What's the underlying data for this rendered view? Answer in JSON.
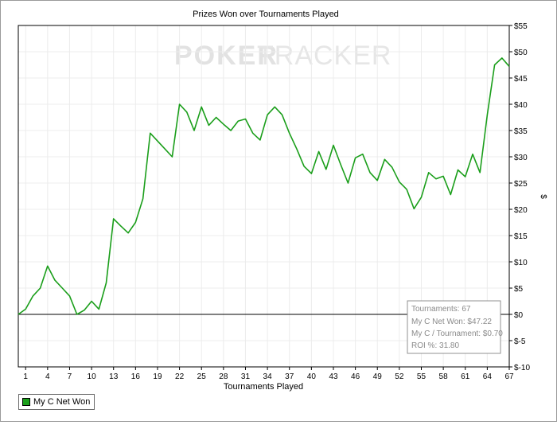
{
  "chart_data": {
    "type": "line",
    "title": "Prizes Won over Tournaments Played",
    "xlabel": "Tournaments Played",
    "ylabel": "$",
    "watermark": {
      "poker": "POKER",
      "tracker": "TRACKER"
    },
    "xlim": [
      0,
      67
    ],
    "ylim": [
      -10,
      55
    ],
    "x_ticks": [
      1,
      4,
      7,
      10,
      13,
      16,
      19,
      22,
      25,
      28,
      31,
      34,
      37,
      40,
      43,
      46,
      49,
      52,
      55,
      58,
      61,
      64,
      67
    ],
    "y_ticks": [
      {
        "value": 55,
        "label": "$55"
      },
      {
        "value": 50,
        "label": "$50"
      },
      {
        "value": 45,
        "label": "$45"
      },
      {
        "value": 40,
        "label": "$40"
      },
      {
        "value": 35,
        "label": "$35"
      },
      {
        "value": 30,
        "label": "$30"
      },
      {
        "value": 25,
        "label": "$25"
      },
      {
        "value": 20,
        "label": "$20"
      },
      {
        "value": 15,
        "label": "$15"
      },
      {
        "value": 10,
        "label": "$10"
      },
      {
        "value": 5,
        "label": "$5"
      },
      {
        "value": 0,
        "label": "$0"
      },
      {
        "value": -5,
        "label": "$-5"
      },
      {
        "value": -10,
        "label": "$-10"
      }
    ],
    "grid": true,
    "legend_position": "bottom-left",
    "series": [
      {
        "name": "My C Net Won",
        "color": "#1a9e1a",
        "x": [
          0,
          1,
          2,
          3,
          4,
          5,
          6,
          7,
          8,
          9,
          10,
          11,
          12,
          13,
          14,
          15,
          16,
          17,
          18,
          19,
          20,
          21,
          22,
          23,
          24,
          25,
          26,
          27,
          28,
          29,
          30,
          31,
          32,
          33,
          34,
          35,
          36,
          37,
          38,
          39,
          40,
          41,
          42,
          43,
          44,
          45,
          46,
          47,
          48,
          49,
          50,
          51,
          52,
          53,
          54,
          55,
          56,
          57,
          58,
          59,
          60,
          61,
          62,
          63,
          64,
          65,
          66,
          67
        ],
        "y": [
          0,
          1,
          3.5,
          5,
          9.2,
          6.5,
          5,
          3.5,
          0,
          0.8,
          2.5,
          1,
          6,
          18.2,
          16.8,
          15.5,
          17.5,
          22,
          34.5,
          33,
          31.5,
          30,
          40,
          38.5,
          35,
          39.5,
          36,
          37.5,
          36.2,
          35,
          36.8,
          37.2,
          34.5,
          33.2,
          38,
          39.5,
          38,
          34.5,
          31.5,
          28.2,
          26.8,
          31,
          27.6,
          32.2,
          28.5,
          25,
          29.8,
          30.5,
          27,
          25.5,
          29.5,
          28,
          25.2,
          23.8,
          20.1,
          22.3,
          27,
          25.8,
          26.3,
          22.8,
          27.5,
          26.2,
          30.5,
          27,
          38,
          47.5,
          48.8,
          47.2
        ]
      }
    ],
    "tooltip": {
      "tournaments": "Tournaments: 67",
      "net_won": "My C Net Won: $47.22",
      "per_tournament": "My C / Tournament: $0.70",
      "roi": "ROI %: 31.80"
    }
  }
}
